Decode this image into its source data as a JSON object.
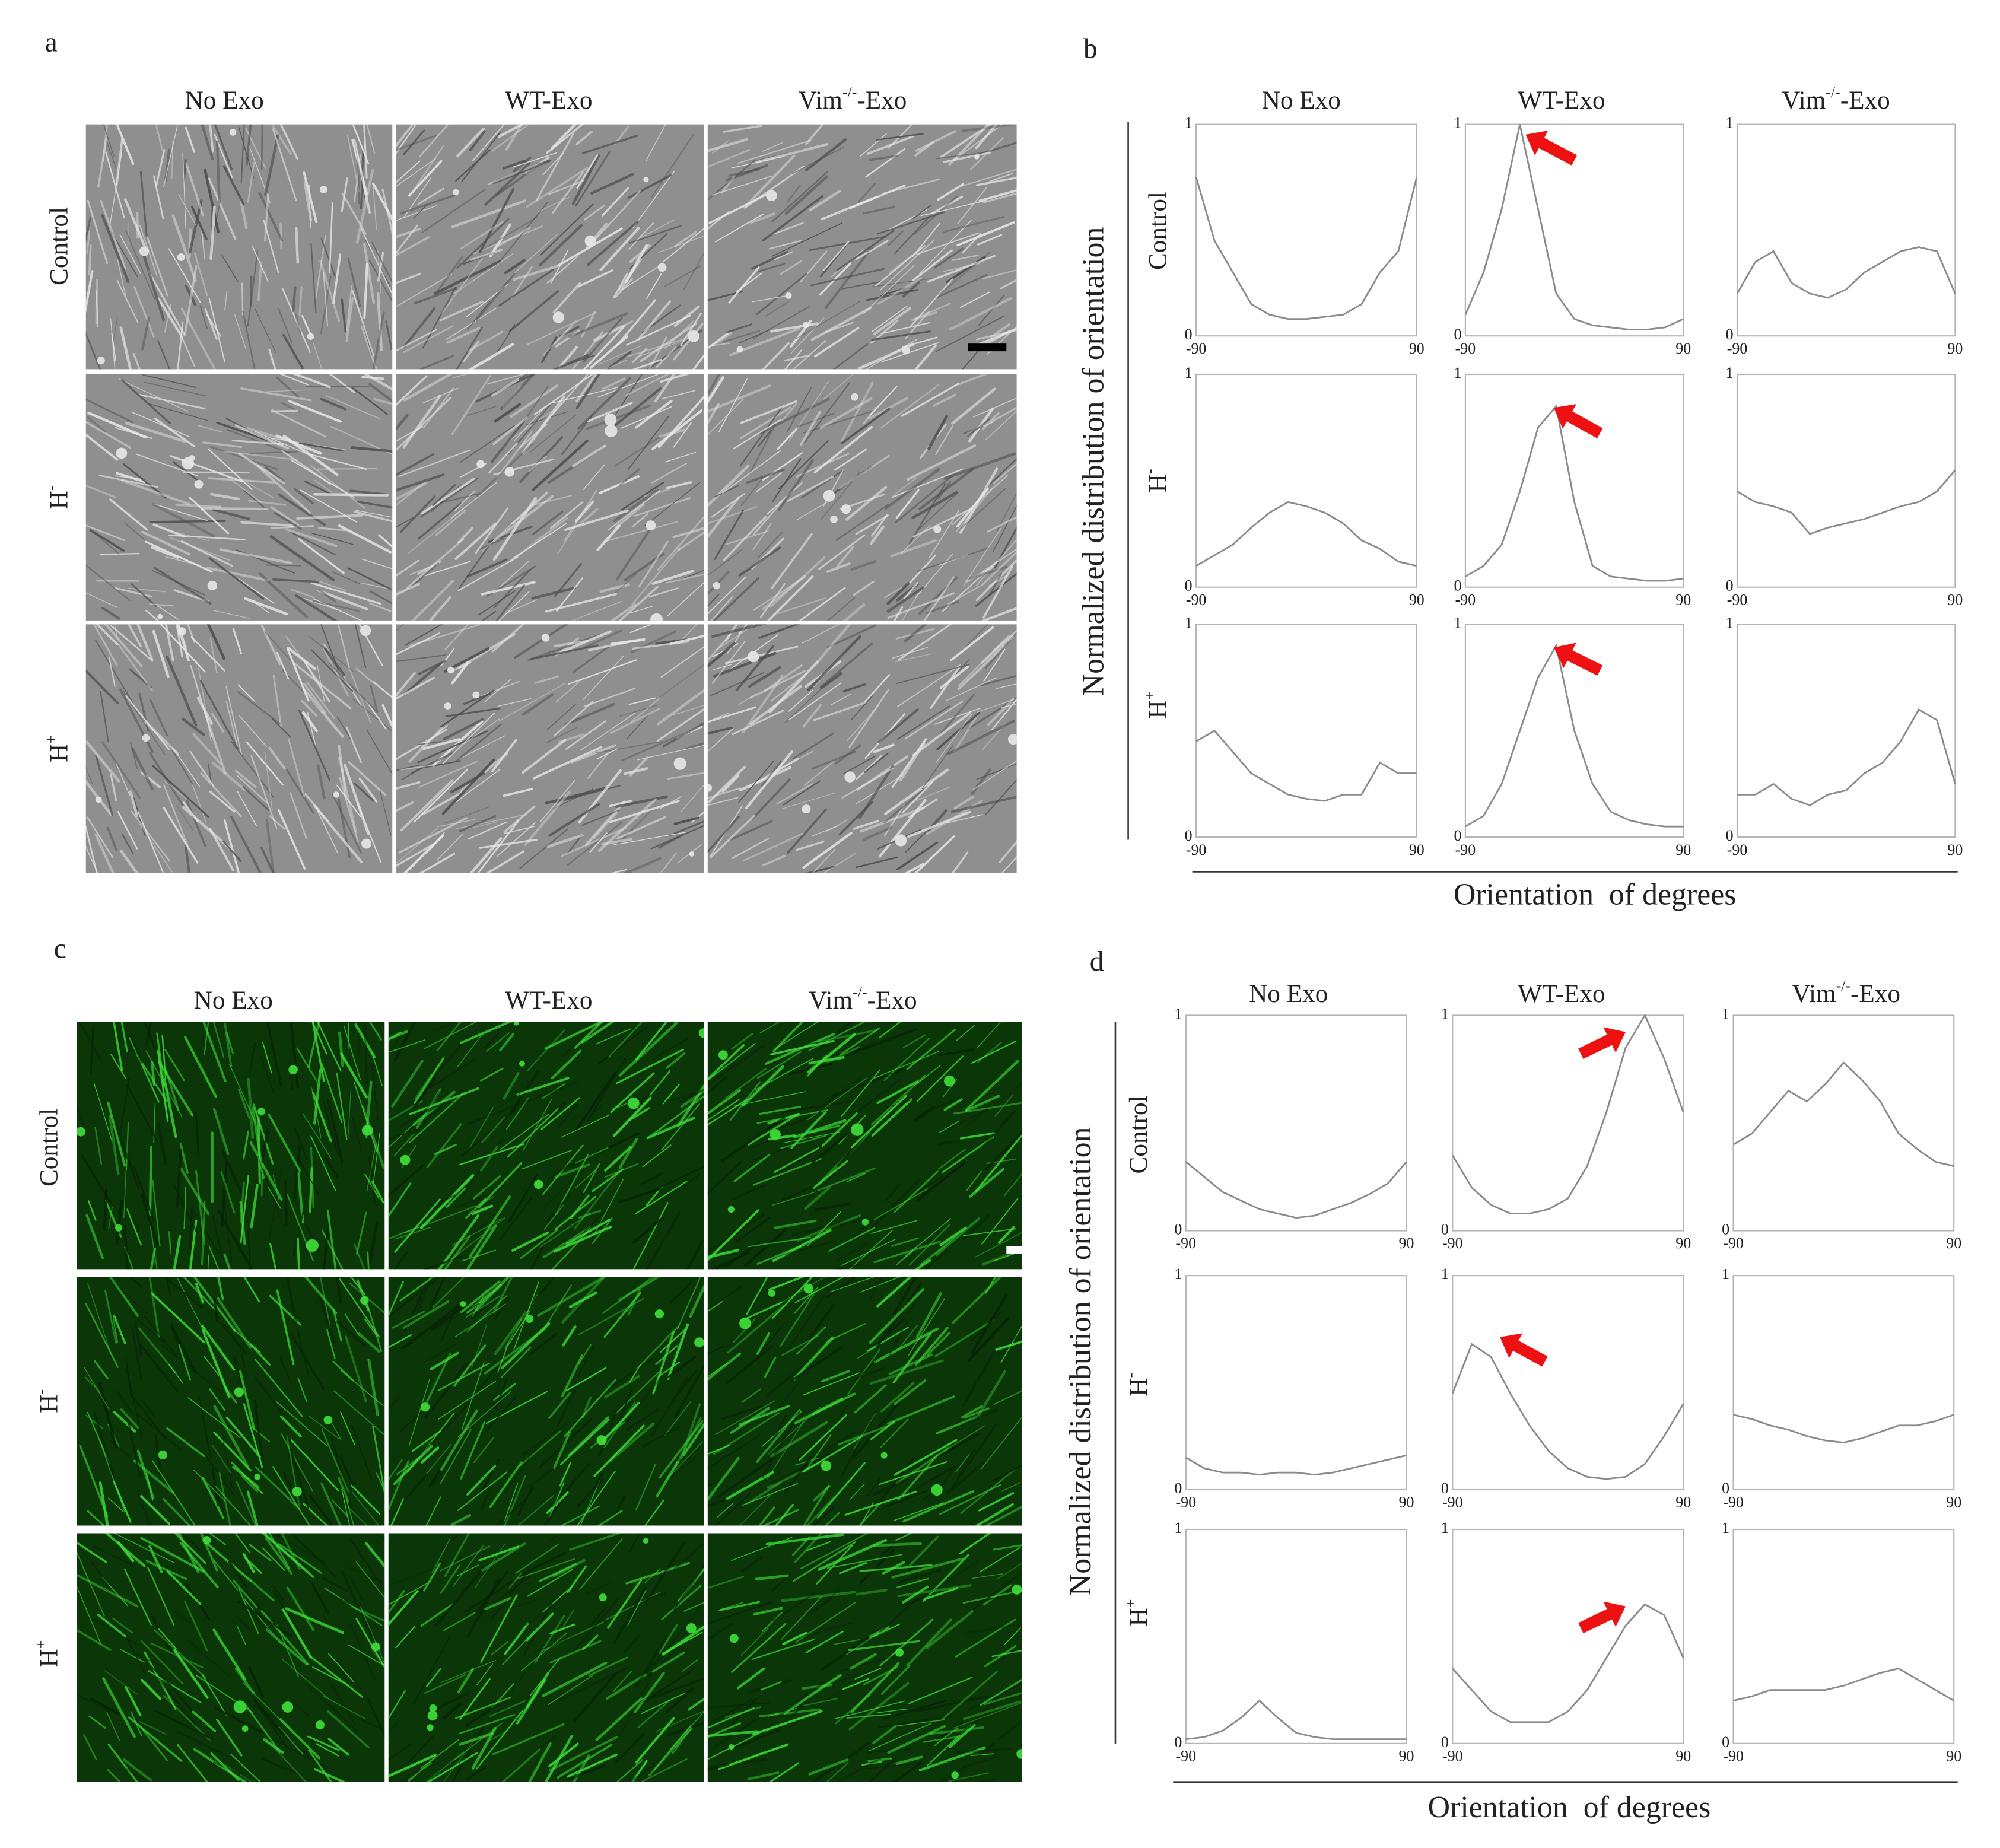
{
  "figure": {
    "panels": [
      {
        "label": "a",
        "columns": [
          {
            "text": "No Exo"
          },
          {
            "text": "WT-Exo"
          },
          {
            "text": "Vim",
            "sup": "-/-",
            "after": "-Exo"
          }
        ],
        "rows": [
          {
            "text": "Control"
          },
          {
            "text": "H",
            "sup": "-"
          },
          {
            "text": "H",
            "sup": "+"
          }
        ]
      },
      {
        "label": "b",
        "type": "line",
        "ylabel": "Normalized distribution of orientation",
        "xlabel": "Orientation  of degrees",
        "columns": [
          {
            "text": "No Exo"
          },
          {
            "text": "WT-Exo"
          },
          {
            "text": "Vim",
            "sup": "-/-",
            "after": "-Exo"
          }
        ],
        "rows": [
          {
            "text": "Control"
          },
          {
            "text": "H",
            "sup": "-"
          },
          {
            "text": "H",
            "sup": "+"
          }
        ],
        "xlim": [
          -90,
          90
        ],
        "ylim": [
          0,
          1
        ],
        "xticks": [
          -90,
          90
        ],
        "yticks": [
          0,
          1
        ],
        "color": "#8a8a8a",
        "x": [
          -90,
          -75,
          -60,
          -45,
          -30,
          -15,
          0,
          15,
          30,
          45,
          60,
          75,
          90
        ],
        "charts": [
          [
            {
              "values": [
                0.75,
                0.45,
                0.3,
                0.15,
                0.1,
                0.08,
                0.08,
                0.09,
                0.1,
                0.15,
                0.3,
                0.4,
                0.75
              ]
            },
            {
              "values": [
                0.1,
                0.3,
                0.6,
                1.0,
                0.6,
                0.2,
                0.08,
                0.05,
                0.04,
                0.03,
                0.03,
                0.04,
                0.08
              ]
            },
            {
              "values": [
                0.2,
                0.35,
                0.4,
                0.25,
                0.2,
                0.18,
                0.22,
                0.3,
                0.35,
                0.4,
                0.42,
                0.4,
                0.2
              ]
            }
          ],
          [
            {
              "values": [
                0.1,
                0.15,
                0.2,
                0.28,
                0.35,
                0.4,
                0.38,
                0.35,
                0.3,
                0.22,
                0.18,
                0.12,
                0.1
              ]
            },
            {
              "values": [
                0.05,
                0.1,
                0.2,
                0.45,
                0.75,
                0.85,
                0.4,
                0.1,
                0.05,
                0.04,
                0.03,
                0.03,
                0.04
              ]
            },
            {
              "values": [
                0.45,
                0.4,
                0.38,
                0.35,
                0.25,
                0.28,
                0.3,
                0.32,
                0.35,
                0.38,
                0.4,
                0.45,
                0.55
              ]
            }
          ],
          [
            {
              "values": [
                0.45,
                0.5,
                0.4,
                0.3,
                0.25,
                0.2,
                0.18,
                0.17,
                0.2,
                0.2,
                0.35,
                0.3,
                0.3
              ]
            },
            {
              "values": [
                0.05,
                0.1,
                0.25,
                0.5,
                0.75,
                0.9,
                0.5,
                0.25,
                0.12,
                0.08,
                0.06,
                0.05,
                0.05
              ]
            },
            {
              "values": [
                0.2,
                0.2,
                0.25,
                0.18,
                0.15,
                0.2,
                0.22,
                0.3,
                0.35,
                0.45,
                0.6,
                0.55,
                0.25
              ]
            }
          ]
        ]
      },
      {
        "label": "c",
        "columns": [
          {
            "text": "No Exo"
          },
          {
            "text": "WT-Exo"
          },
          {
            "text": "Vim",
            "sup": "-/-",
            "after": "-Exo"
          }
        ],
        "rows": [
          {
            "text": "Control"
          },
          {
            "text": "H",
            "sup": "-"
          },
          {
            "text": "H",
            "sup": "+"
          }
        ]
      },
      {
        "label": "d",
        "type": "line",
        "ylabel": "Normalized distribution of orientation",
        "xlabel": "Orientation  of degrees",
        "columns": [
          {
            "text": "No Exo"
          },
          {
            "text": "WT-Exo"
          },
          {
            "text": "Vim",
            "sup": "-/-",
            "after": "-Exo"
          }
        ],
        "rows": [
          {
            "text": "Control"
          },
          {
            "text": "H",
            "sup": "-"
          },
          {
            "text": "H",
            "sup": "+"
          }
        ],
        "xlim": [
          -90,
          90
        ],
        "ylim": [
          0,
          1
        ],
        "xticks": [
          -90,
          90
        ],
        "yticks": [
          0,
          1
        ],
        "color": "#8a8a8a",
        "x": [
          -90,
          -75,
          -60,
          -45,
          -30,
          -15,
          0,
          15,
          30,
          45,
          60,
          75,
          90
        ],
        "charts": [
          [
            {
              "values": [
                0.32,
                0.25,
                0.18,
                0.14,
                0.1,
                0.08,
                0.06,
                0.07,
                0.1,
                0.13,
                0.17,
                0.22,
                0.32
              ]
            },
            {
              "values": [
                0.35,
                0.2,
                0.12,
                0.08,
                0.08,
                0.1,
                0.15,
                0.3,
                0.55,
                0.85,
                1.0,
                0.8,
                0.55
              ]
            },
            {
              "values": [
                0.4,
                0.45,
                0.55,
                0.65,
                0.6,
                0.68,
                0.78,
                0.7,
                0.6,
                0.45,
                0.38,
                0.32,
                0.3
              ]
            }
          ],
          [
            {
              "values": [
                0.15,
                0.1,
                0.08,
                0.08,
                0.07,
                0.08,
                0.08,
                0.07,
                0.08,
                0.1,
                0.12,
                0.14,
                0.16
              ]
            },
            {
              "values": [
                0.45,
                0.68,
                0.62,
                0.45,
                0.3,
                0.18,
                0.1,
                0.06,
                0.05,
                0.06,
                0.12,
                0.25,
                0.4
              ]
            },
            {
              "values": [
                0.35,
                0.33,
                0.3,
                0.28,
                0.25,
                0.23,
                0.22,
                0.24,
                0.27,
                0.3,
                0.3,
                0.32,
                0.35
              ]
            }
          ],
          [
            {
              "values": [
                0.02,
                0.03,
                0.06,
                0.12,
                0.2,
                0.12,
                0.05,
                0.03,
                0.02,
                0.02,
                0.02,
                0.02,
                0.02
              ]
            },
            {
              "values": [
                0.35,
                0.25,
                0.15,
                0.1,
                0.1,
                0.1,
                0.15,
                0.25,
                0.4,
                0.55,
                0.65,
                0.6,
                0.4
              ]
            },
            {
              "values": [
                0.2,
                0.22,
                0.25,
                0.25,
                0.25,
                0.25,
                0.27,
                0.3,
                0.33,
                0.35,
                0.3,
                0.25,
                0.2
              ]
            }
          ]
        ]
      }
    ]
  }
}
